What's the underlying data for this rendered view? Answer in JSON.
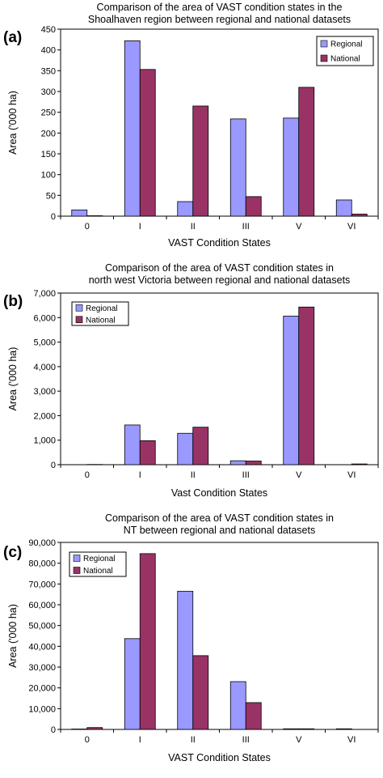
{
  "colors": {
    "regional": "#9999ff",
    "national": "#993366",
    "axis": "#000000",
    "legend_border": "#000000"
  },
  "chart_data": [
    {
      "panel_label": "(a)",
      "type": "bar",
      "title_lines": [
        "Comparison of the area of VAST condition states in the",
        "Shoalhaven region between regional and national datasets"
      ],
      "xlabel": "VAST Condition States",
      "ylabel": "Area ('000 ha)",
      "categories": [
        "0",
        "I",
        "II",
        "III",
        "V",
        "VI"
      ],
      "ylim": [
        0,
        450
      ],
      "yticks": [
        0,
        50,
        100,
        150,
        200,
        250,
        300,
        350,
        400,
        450
      ],
      "ytick_labels": [
        "0",
        "50",
        "100",
        "150",
        "200",
        "250",
        "300",
        "350",
        "400",
        "450"
      ],
      "grid": false,
      "legend_position": "top-right",
      "series": [
        {
          "name": "Regional",
          "values": [
            15,
            422,
            35,
            234,
            236,
            39
          ]
        },
        {
          "name": "National",
          "values": [
            1,
            353,
            265,
            47,
            310,
            5
          ]
        }
      ]
    },
    {
      "panel_label": "(b)",
      "type": "bar",
      "title_lines": [
        "Comparison of the area of VAST condition states in",
        "north west Victoria between regional and national datasets"
      ],
      "xlabel": "Vast Condition States",
      "ylabel": "Area ('000 ha)",
      "categories": [
        "0",
        "I",
        "II",
        "III",
        "V",
        "VI"
      ],
      "ylim": [
        0,
        7000
      ],
      "yticks": [
        0,
        1000,
        2000,
        3000,
        4000,
        5000,
        6000,
        7000
      ],
      "ytick_labels": [
        "0",
        "1,000",
        "2,000",
        "3,000",
        "4,000",
        "5,000",
        "6,000",
        "7,000"
      ],
      "grid": false,
      "legend_position": "top-left",
      "series": [
        {
          "name": "Regional",
          "values": [
            0,
            1620,
            1280,
            160,
            6060,
            0
          ]
        },
        {
          "name": "National",
          "values": [
            10,
            980,
            1530,
            150,
            6430,
            30
          ]
        }
      ]
    },
    {
      "panel_label": "(c)",
      "type": "bar",
      "title_lines": [
        "Comparison of the area of VAST condition states in",
        "NT between regional and national datasets"
      ],
      "xlabel": "VAST Condition States",
      "ylabel": "Area ('000 ha)",
      "categories": [
        "0",
        "I",
        "II",
        "III",
        "V",
        "VI"
      ],
      "ylim": [
        0,
        90000
      ],
      "yticks": [
        0,
        10000,
        20000,
        30000,
        40000,
        50000,
        60000,
        70000,
        80000,
        90000
      ],
      "ytick_labels": [
        "0",
        "10,000",
        "20,000",
        "30,000",
        "40,000",
        "50,000",
        "60,000",
        "70,000",
        "80,000",
        "90,000"
      ],
      "grid": false,
      "legend_position": "top-left",
      "series": [
        {
          "name": "Regional",
          "values": [
            200,
            43700,
            66500,
            23000,
            300,
            300
          ]
        },
        {
          "name": "National",
          "values": [
            900,
            84600,
            35500,
            12900,
            300,
            0
          ]
        }
      ]
    }
  ]
}
